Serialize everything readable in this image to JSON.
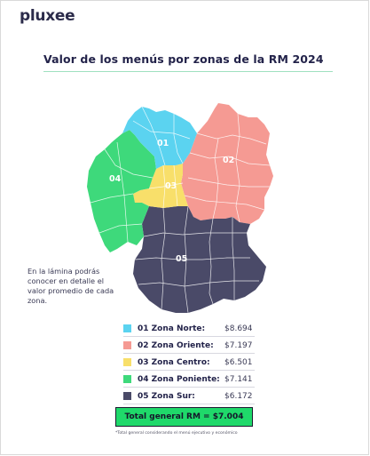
{
  "brand": {
    "logo_text": "pluxee"
  },
  "header": {
    "title": "Valor de los menús por zonas de la RM 2024"
  },
  "map": {
    "zones": [
      {
        "id": "01",
        "name": "Zona Norte",
        "color": "#5bd3f0"
      },
      {
        "id": "02",
        "name": "Zona Oriente",
        "color": "#f59a93"
      },
      {
        "id": "03",
        "name": "Zona Centro",
        "color": "#f8df6a"
      },
      {
        "id": "04",
        "name": "Zona Poniente",
        "color": "#3ed97b"
      },
      {
        "id": "05",
        "name": "Zona Sur",
        "color": "#4a4a68"
      }
    ]
  },
  "note": {
    "text": "En la lámina podrás conocer en detalle el valor promedio de cada zona."
  },
  "legend": {
    "items": [
      {
        "label": "01 Zona Norte:",
        "value": "$8.694",
        "color": "#5bd3f0"
      },
      {
        "label": "02 Zona Oriente:",
        "value": "$7.197",
        "color": "#f59a93"
      },
      {
        "label": "03 Zona Centro:",
        "value": "$6.501",
        "color": "#f8df6a"
      },
      {
        "label": "04 Zona Poniente:",
        "value": "$7.141",
        "color": "#3ed97b"
      },
      {
        "label": "05 Zona Sur:",
        "value": "$6.172",
        "color": "#4a4a68"
      }
    ]
  },
  "total": {
    "text": "Total general RM = $7.004"
  },
  "footnote": {
    "text": "*Total general considerando el menú ejecutivo y económico"
  }
}
